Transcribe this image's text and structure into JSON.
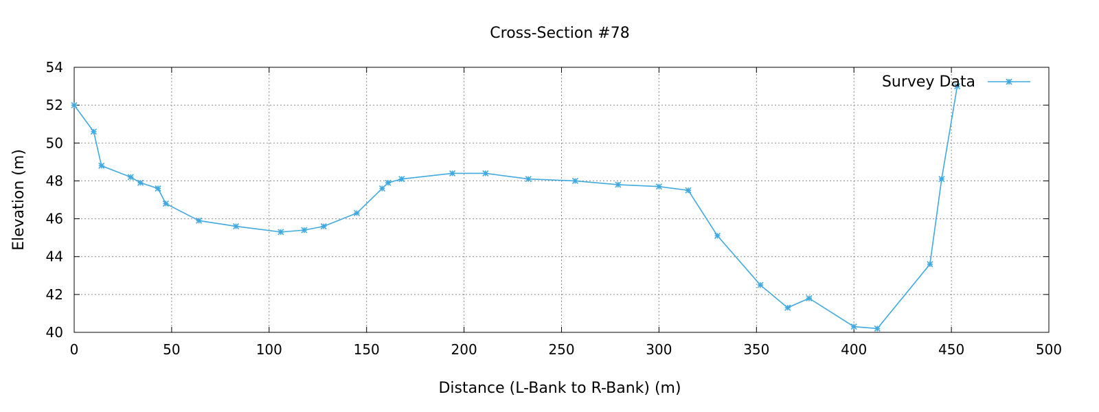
{
  "chart_data": {
    "type": "line",
    "title": "Cross-Section #78",
    "xlabel": "Distance (L-Bank to R-Bank) (m)",
    "ylabel": "Elevation (m)",
    "xlim": [
      0,
      500
    ],
    "ylim": [
      40,
      54
    ],
    "xticks": [
      0,
      50,
      100,
      150,
      200,
      250,
      300,
      350,
      400,
      450,
      500
    ],
    "yticks": [
      40,
      42,
      44,
      46,
      48,
      50,
      52,
      54
    ],
    "grid": true,
    "legend_position": "top-right",
    "marker": "asterisk",
    "color": "#3fa9e0",
    "series": [
      {
        "name": "Survey Data",
        "x": [
          0,
          10,
          14,
          29,
          34,
          43,
          47,
          64,
          83,
          106,
          118,
          128,
          145,
          158,
          161,
          168,
          194,
          211,
          233,
          257,
          279,
          300,
          315,
          330,
          352,
          366,
          377,
          400,
          412,
          439,
          445,
          453
        ],
        "y": [
          52.0,
          50.6,
          48.8,
          48.2,
          47.9,
          47.6,
          46.8,
          45.9,
          45.6,
          45.3,
          45.4,
          45.6,
          46.3,
          47.6,
          47.9,
          48.1,
          48.4,
          48.4,
          48.1,
          48.0,
          47.8,
          47.7,
          47.5,
          45.1,
          42.5,
          41.3,
          41.8,
          40.3,
          40.2,
          43.6,
          48.1,
          53.0
        ]
      }
    ]
  }
}
